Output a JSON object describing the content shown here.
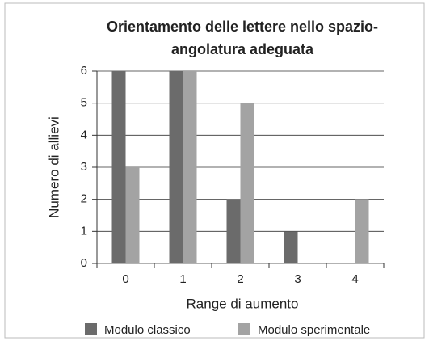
{
  "chart_data": {
    "type": "bar",
    "title": [
      "Orientamento delle lettere nello spazio-",
      "angolatura adeguata"
    ],
    "x_label": "Range di aumento",
    "y_label": "Numero di allievi",
    "categories": [
      "0",
      "1",
      "2",
      "3",
      "4"
    ],
    "series": [
      {
        "name": "Modulo classico",
        "color": "#6b6b6b",
        "values": [
          6,
          6,
          2,
          1,
          0
        ]
      },
      {
        "name": "Modulo sperimentale",
        "color": "#a3a3a3",
        "values": [
          3,
          6,
          5,
          0,
          2
        ]
      }
    ],
    "ylim": [
      0,
      6
    ],
    "yticks": [
      0,
      1,
      2,
      3,
      4,
      5,
      6
    ],
    "grid": true,
    "legend": "bottom"
  }
}
